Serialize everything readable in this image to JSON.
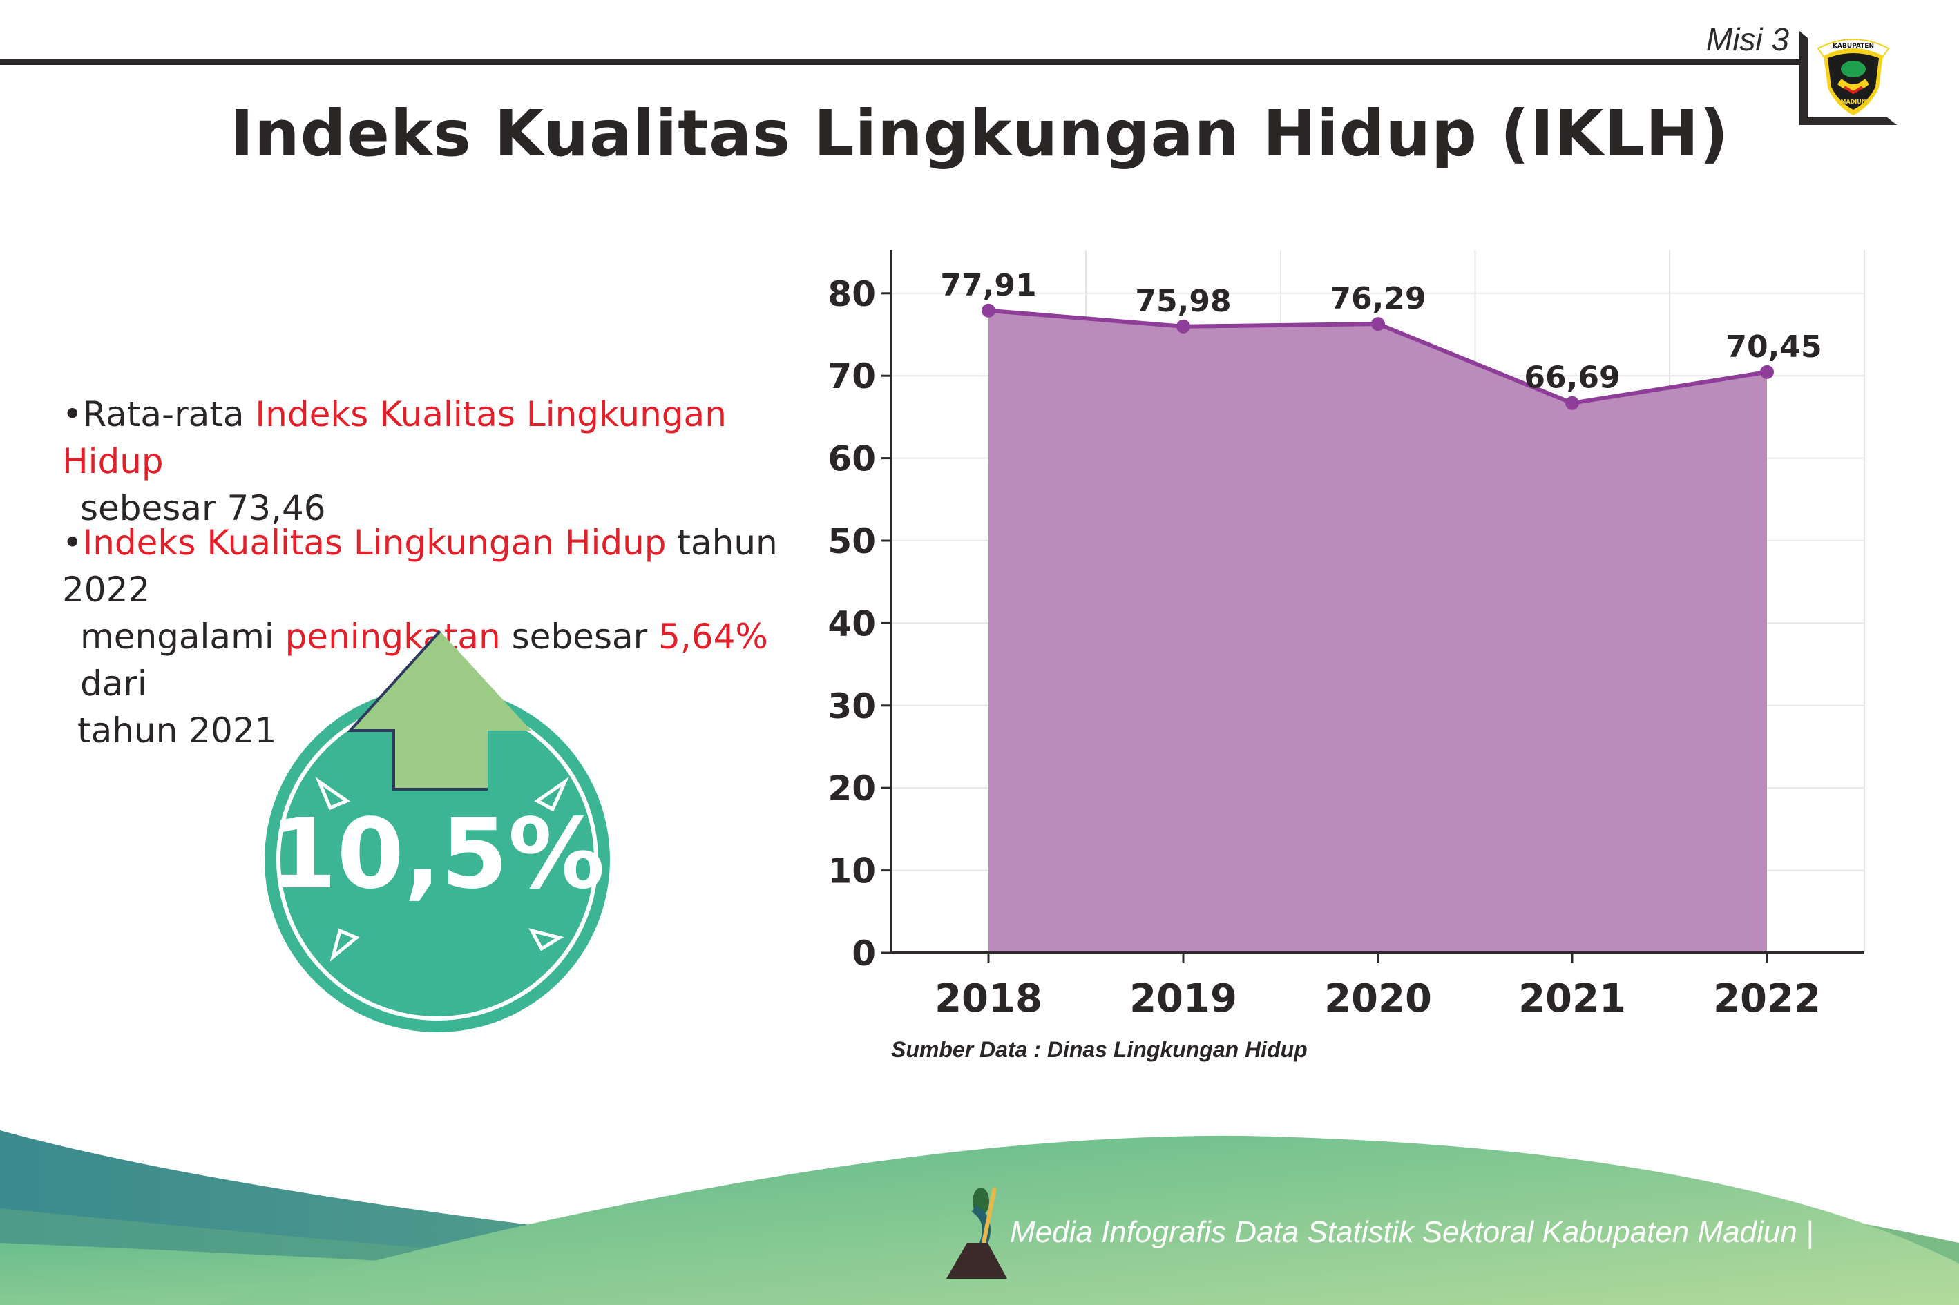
{
  "header": {
    "mission": "Misi 3",
    "logo_text_top": "KABUPATEN",
    "logo_text_bottom": "MADIUN"
  },
  "title": "Indeks Kualitas Lingkungan Hidup (IKLH)",
  "bullets": [
    {
      "prefix": "Rata-rata ",
      "highlight": "Indeks Kualitas Lingkungan Hidup",
      "line2": "sebesar 73,46"
    },
    {
      "highlight": "Indeks Kualitas Lingkungan Hidup",
      "after": " tahun 2022",
      "line2_a": "mengalami ",
      "line2_b": "peningkatan",
      "line2_c": " sebesar ",
      "line2_d": "5,64%",
      "line2_e": " dari",
      "line3": "tahun 2021"
    }
  ],
  "badge": {
    "value": "10,5%",
    "icon": "up-arrow-icon"
  },
  "colors": {
    "area": "#b988b9",
    "line": "#8e3e98",
    "badge": "#3bb593",
    "arrow": "#9ccb85",
    "highlight": "#e3202a"
  },
  "chart_data": {
    "type": "area",
    "categories": [
      "2018",
      "2019",
      "2020",
      "2021",
      "2022"
    ],
    "values": [
      77.91,
      75.98,
      76.29,
      66.69,
      70.45
    ],
    "data_labels": [
      "77,91",
      "75,98",
      "76,29",
      "66,69",
      "70,45"
    ],
    "yticks": [
      "0",
      "10",
      "20",
      "30",
      "40",
      "50",
      "60",
      "70",
      "80"
    ],
    "ylim": [
      0,
      85
    ],
    "grid": true,
    "legend": "none"
  },
  "source": "Sumber Data : Dinas Lingkungan Hidup",
  "footer": {
    "text": "Media Infografis Data Statistik Sektoral Kabupaten Madiun |"
  }
}
